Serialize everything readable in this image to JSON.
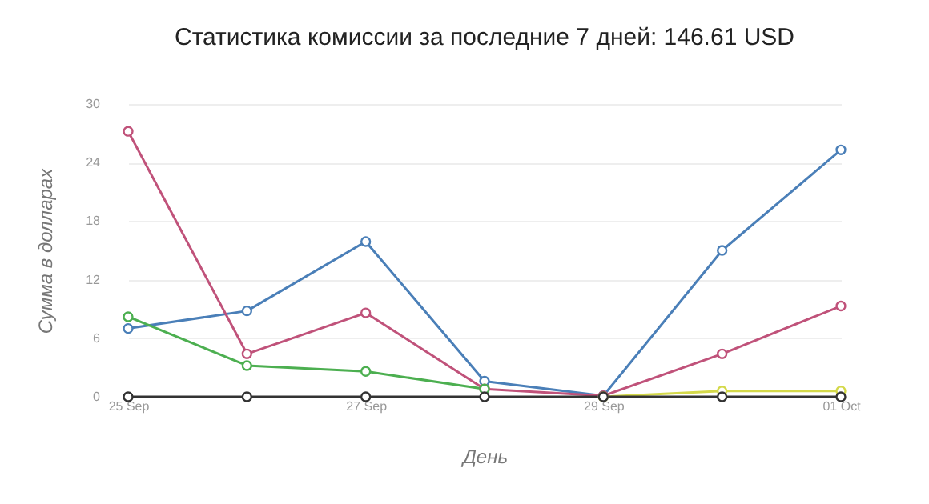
{
  "chart_data": {
    "type": "line",
    "title": "Статистика комиссии за последние 7 дней: 146.61 USD",
    "xlabel": "День",
    "ylabel": "Сумма в долларах",
    "categories": [
      "25 Sep",
      null,
      "27 Sep",
      null,
      "29 Sep",
      null,
      "01 Oct"
    ],
    "series": [
      {
        "color": "#4a7fb8",
        "values": [
          7.0,
          8.8,
          15.9,
          1.6,
          0.1,
          15.0,
          25.3
        ]
      },
      {
        "color": "#c0527a",
        "values": [
          27.2,
          4.4,
          8.6,
          0.8,
          0.1,
          4.4,
          9.3
        ]
      },
      {
        "color": "#4caf50",
        "values": [
          8.2,
          3.2,
          2.6,
          0.8,
          null,
          null,
          null
        ]
      },
      {
        "color": "#d4d94a",
        "values": [
          null,
          null,
          null,
          null,
          0,
          0.6,
          0.6
        ]
      },
      {
        "color": "#333333",
        "values": [
          0,
          0,
          0,
          0,
          0,
          0,
          0
        ]
      }
    ],
    "ylim": [
      0,
      30
    ],
    "yticks": [
      0,
      6,
      12,
      18,
      24,
      30
    ],
    "grid": "y",
    "marker": "circle",
    "line_style": "solid"
  }
}
